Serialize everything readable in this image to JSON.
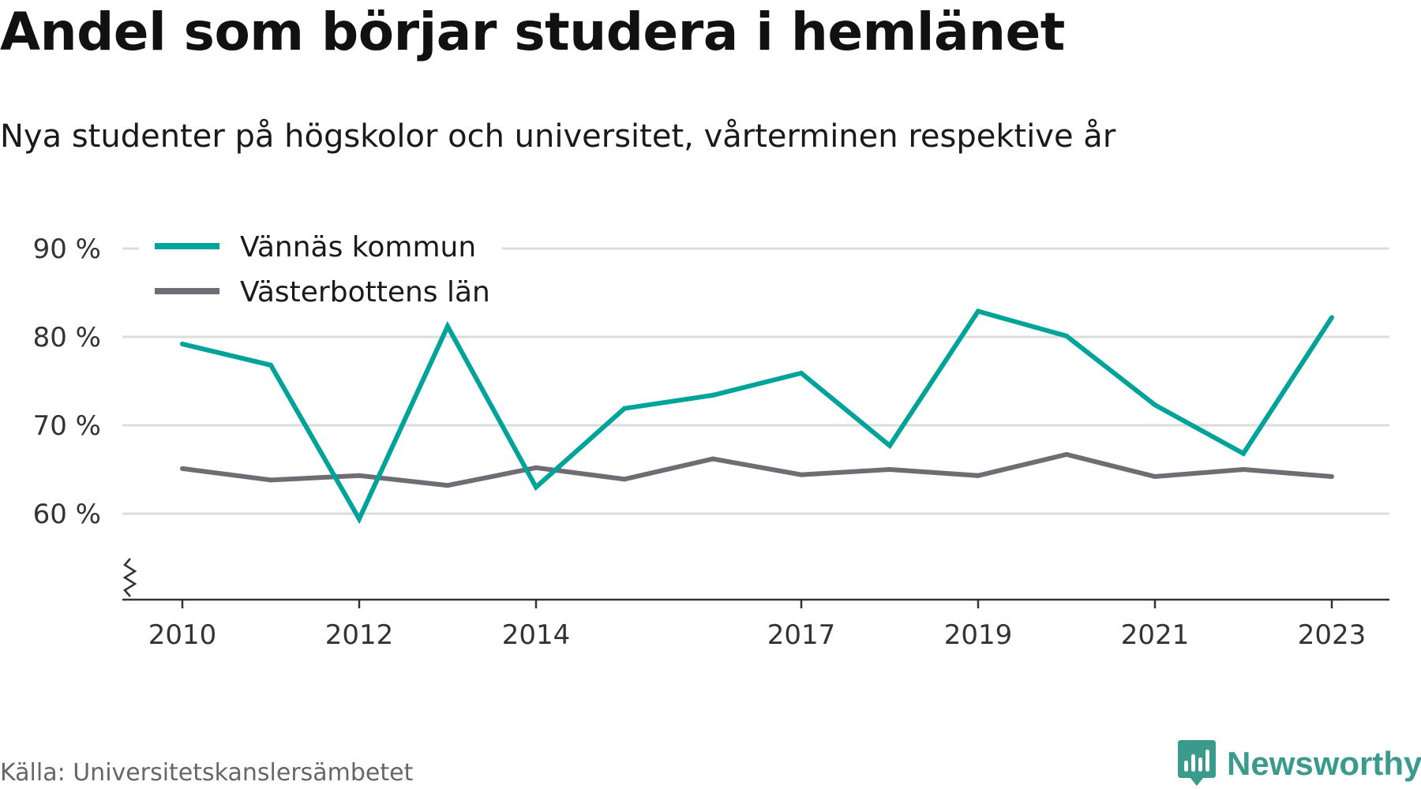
{
  "header": {
    "title": "Andel som börjar studera i hemlänet",
    "subtitle": "Nya studenter på högskolor och universitet, vårterminen respektive år"
  },
  "footer": {
    "source": "Källa: Universitetskanslersämbetet",
    "brand": "Newsworthy",
    "brand_color": "#3a9a8c"
  },
  "chart_data": {
    "type": "line",
    "x": [
      2010,
      2011,
      2012,
      2013,
      2014,
      2015,
      2016,
      2017,
      2018,
      2019,
      2020,
      2021,
      2022,
      2023
    ],
    "x_ticks": [
      "2010",
      "2012",
      "2014",
      "2017",
      "2019",
      "2021",
      "2023"
    ],
    "y_ticks": [
      {
        "value": 60,
        "label": "60 %"
      },
      {
        "value": 70,
        "label": "70 %"
      },
      {
        "value": 80,
        "label": "80 %"
      },
      {
        "value": 90,
        "label": "90 %"
      }
    ],
    "ylim": [
      50,
      90
    ],
    "y_axis_break": true,
    "grid": true,
    "legend_position": "top-left",
    "series": [
      {
        "name": "Vännäs kommun",
        "color": "#00a39a",
        "values": [
          79.2,
          76.8,
          59.4,
          81.2,
          63.0,
          71.9,
          73.4,
          75.9,
          67.7,
          82.9,
          80.1,
          72.3,
          66.8,
          82.2
        ]
      },
      {
        "name": "Västerbottens län",
        "color": "#6e6d73",
        "values": [
          65.1,
          63.8,
          64.3,
          63.2,
          65.2,
          63.9,
          66.2,
          64.4,
          65.0,
          64.3,
          66.7,
          64.2,
          65.0,
          64.2
        ]
      }
    ]
  }
}
